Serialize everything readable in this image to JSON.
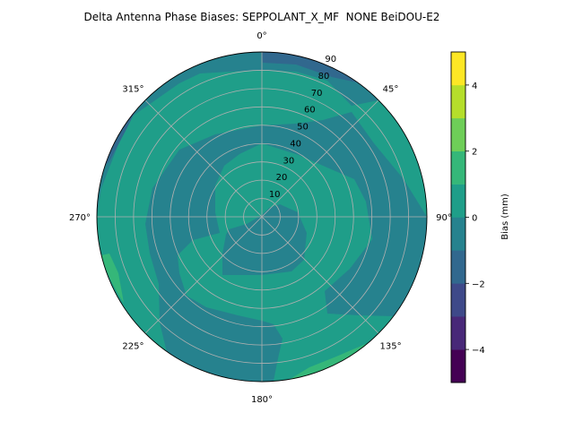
{
  "chart_data": {
    "type": "polar-contour",
    "title": "Delta Antenna Phase Biases: SEPPOLANT_X_MF  NONE BeiDOU-E2",
    "angle_ticks": [
      "0°",
      "45°",
      "90°",
      "135°",
      "180°",
      "225°",
      "270°",
      "315°"
    ],
    "radial_ticks": [
      "10",
      "20",
      "30",
      "40",
      "50",
      "60",
      "70",
      "80",
      "90"
    ],
    "radial_range": [
      0,
      90
    ],
    "angular_direction": "clockwise",
    "zero_location": "north",
    "grid": true,
    "colorbar": {
      "label": "Bias (mm)",
      "levels": [
        -5,
        -4,
        -3,
        -2,
        -1,
        0,
        1,
        2,
        3,
        4,
        5
      ],
      "ticks": [
        "−4",
        "−2",
        "0",
        "2",
        "4"
      ],
      "tick_values": [
        -4,
        -2,
        0,
        2,
        4
      ],
      "colormap": "viridis",
      "band_colors": [
        "#440154",
        "#482878",
        "#3e4989",
        "#31688e",
        "#26828e",
        "#1f9e89",
        "#35b779",
        "#6ece58",
        "#b5de2b",
        "#fde725"
      ]
    },
    "visible_value_bands": [
      {
        "range": [
          -2,
          -1
        ],
        "color": "#31688e"
      },
      {
        "range": [
          -1,
          0
        ],
        "color": "#26828e"
      },
      {
        "range": [
          0,
          1
        ],
        "color": "#1f9e89"
      },
      {
        "range": [
          1,
          2
        ],
        "color": "#35b779"
      }
    ]
  }
}
